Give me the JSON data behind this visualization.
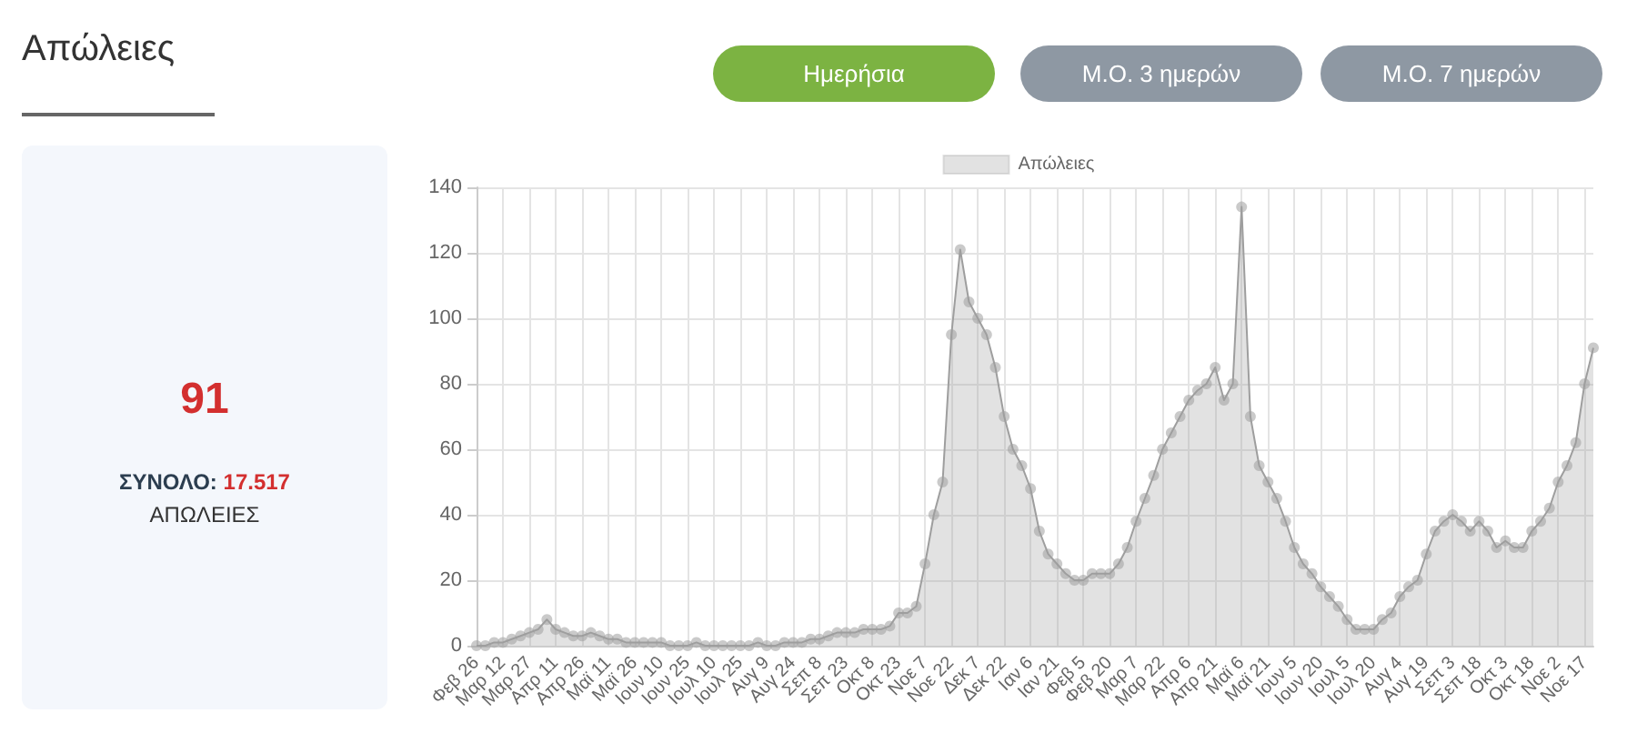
{
  "chart_data": {
    "type": "area",
    "title": "Απώλειες",
    "annotations": [
      "91",
      "ΣΥΝΟΛΟ:",
      "17.517",
      "ΑΠΩΛΕΙΕΣ",
      "Ημερήσια",
      "Μ.Ο. 3 ημερών",
      "Μ.Ο. 7 ημερών"
    ],
    "categories": [
      "Φεβ 26",
      null,
      null,
      "Μαρ 12",
      null,
      null,
      "Μαρ 27",
      null,
      null,
      "Απρ 11",
      null,
      null,
      "Απρ 26",
      null,
      null,
      "Μαϊ 11",
      null,
      null,
      "Μαϊ 26",
      null,
      null,
      "Ιουν 10",
      null,
      null,
      "Ιουν 25",
      null,
      null,
      "Ιουλ 10",
      null,
      null,
      "Ιουλ 25",
      null,
      null,
      "Αυγ 9",
      null,
      null,
      "Αυγ 24",
      null,
      null,
      "Σεπ 8",
      null,
      null,
      "Σεπ 23",
      null,
      null,
      "Οκτ 8",
      null,
      null,
      "Οκτ 23",
      null,
      null,
      "Νοε 7",
      null,
      null,
      "Νοε 22",
      null,
      null,
      "Δεκ 7",
      null,
      null,
      "Δεκ 22",
      null,
      null,
      "Ιαν 6",
      null,
      null,
      "Ιαν 21",
      null,
      null,
      "Φεβ 5",
      null,
      null,
      "Φεβ 20",
      null,
      null,
      "Μαρ 7",
      null,
      null,
      "Μαρ 22",
      null,
      null,
      "Απρ 6",
      null,
      null,
      "Απρ 21",
      null,
      null,
      "Μαϊ 6",
      null,
      null,
      "Μαϊ 21",
      null,
      null,
      "Ιουν 5",
      null,
      null,
      "Ιουν 20",
      null,
      null,
      "Ιουλ 5",
      null,
      null,
      "Ιουλ 20",
      null,
      null,
      "Αυγ 4",
      null,
      null,
      "Αυγ 19",
      null,
      null,
      "Σεπ 3",
      null,
      null,
      "Σεπ 18",
      null,
      null,
      "Οκτ 3",
      null,
      null,
      "Οκτ 18",
      null,
      null,
      "Νοε 2",
      null,
      null,
      "Νοε 17",
      null
    ],
    "series": [
      {
        "name": "Απώλειες",
        "color": "#9e9e9e",
        "values": [
          0,
          0,
          1,
          1,
          2,
          3,
          4,
          5,
          8,
          5,
          4,
          3,
          3,
          4,
          3,
          2,
          2,
          1,
          1,
          1,
          1,
          1,
          0,
          0,
          0,
          1,
          0,
          0,
          0,
          0,
          0,
          0,
          1,
          0,
          0,
          1,
          1,
          1,
          2,
          2,
          3,
          4,
          4,
          4,
          5,
          5,
          5,
          6,
          10,
          10,
          12,
          25,
          40,
          50,
          95,
          121,
          105,
          100,
          95,
          85,
          70,
          60,
          55,
          48,
          35,
          28,
          25,
          22,
          20,
          20,
          22,
          22,
          22,
          25,
          30,
          38,
          45,
          52,
          60,
          65,
          70,
          75,
          78,
          80,
          85,
          75,
          80,
          134,
          70,
          55,
          50,
          45,
          38,
          30,
          25,
          22,
          18,
          15,
          12,
          8,
          5,
          5,
          5,
          8,
          10,
          15,
          18,
          20,
          28,
          35,
          38,
          40,
          38,
          35,
          38,
          35,
          30,
          32,
          30,
          30,
          35,
          38,
          42,
          50,
          55,
          62,
          80,
          91
        ]
      }
    ],
    "ylim": [
      0,
      140
    ],
    "yticks": [
      0,
      20,
      40,
      60,
      80,
      100,
      120,
      140
    ],
    "grid": true,
    "legend": "top",
    "marker": "circle"
  }
}
